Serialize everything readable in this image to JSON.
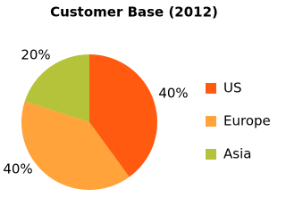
{
  "chart_data": {
    "type": "pie",
    "title": "Customer Base (2012)",
    "categories": [
      "US",
      "Europe",
      "Asia"
    ],
    "values": [
      40,
      40,
      20
    ],
    "value_labels": [
      "40%",
      "40%",
      "20%"
    ],
    "colors": [
      "#ff5a0f",
      "#ffa33a",
      "#b5c33b"
    ],
    "legend": "right"
  }
}
